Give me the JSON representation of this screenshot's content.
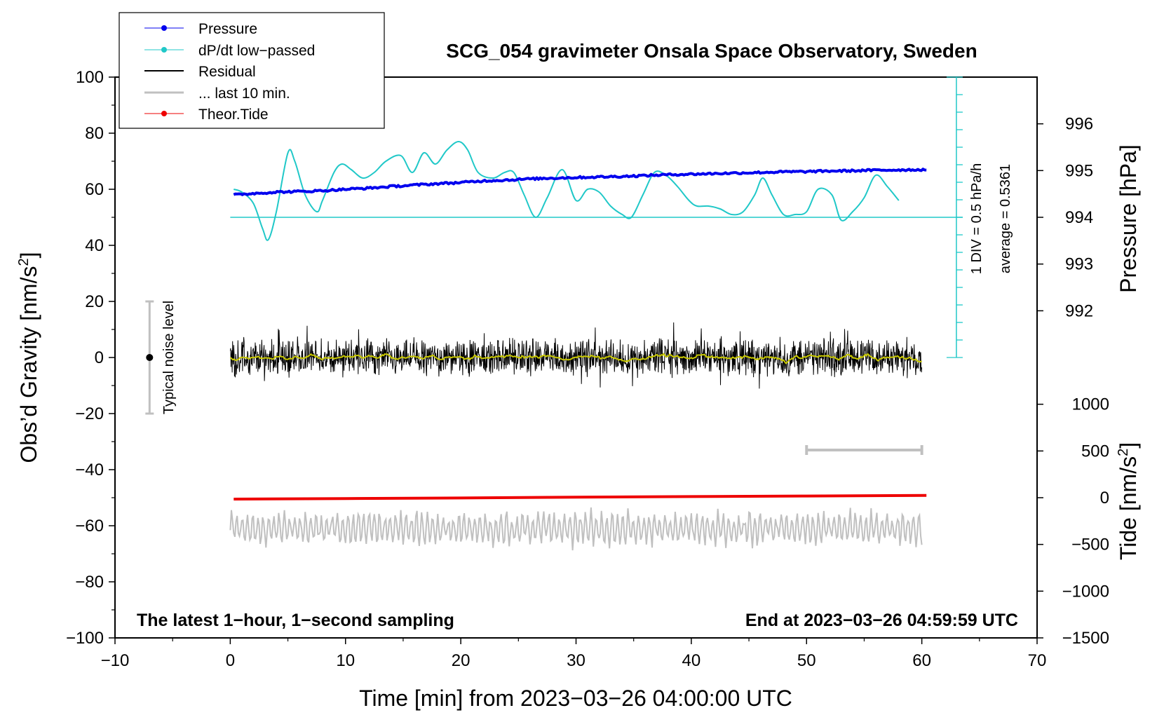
{
  "chart_data": {
    "type": "line",
    "title": "SCG_054 gravimeter Onsala Space Observatory, Sweden",
    "xlabel": "Time [min] from 2023−03−26 04:00:00 UTC",
    "ylabel_left": "Obs’d Gravity [nm/s",
    "ylabel_left_sup": "2",
    "ylabel_left_end": "]",
    "ylabel_right_pressure": "Pressure [hPa]",
    "ylabel_right_tide": "Tide [nm/s",
    "ylabel_right_tide_sup": "2",
    "ylabel_right_tide_end": "]",
    "xlim": [
      -10,
      70
    ],
    "ylim_left": [
      -100,
      100
    ],
    "x_ticks": [
      -10,
      0,
      10,
      20,
      30,
      40,
      50,
      60,
      70
    ],
    "x_tick_labels": [
      "−10",
      "0",
      "10",
      "20",
      "30",
      "40",
      "50",
      "60",
      "70"
    ],
    "y_left_ticks": [
      100,
      80,
      60,
      40,
      20,
      0,
      -20,
      -40,
      -60,
      -80,
      -100
    ],
    "y_left_tick_labels": [
      "100",
      "80",
      "60",
      "40",
      "20",
      "0",
      "−20",
      "−40",
      "−60",
      "−80",
      "−100"
    ],
    "pressure_axis": {
      "ticks": [
        996,
        995,
        994,
        993,
        992
      ],
      "tick_labels": [
        "996",
        "995",
        "994",
        "993",
        "992"
      ],
      "gravity_equiv_at_994": 50,
      "gravity_units_per_hPa": 16.67
    },
    "tide_axis": {
      "ticks": [
        1000,
        500,
        0,
        -500,
        -1000,
        -1500
      ],
      "tick_labels": [
        "1000",
        "500",
        "0",
        "−500",
        "−1000",
        "−1500"
      ],
      "gravity_equiv_at_0": -50,
      "gravity_units_per_unit": 0.03333
    },
    "dpdt_scale": {
      "label_div": "1 DIV = 0.5 hPa/h",
      "label_avg": "average = 0.5361",
      "x": 63,
      "y_range": [
        0,
        100
      ],
      "baseline_y": 50
    },
    "noise_level": {
      "label": "Typical noise level",
      "x": -7,
      "center": 0,
      "range": [
        -20,
        20
      ]
    },
    "last10_bar": {
      "x_range": [
        50,
        60
      ],
      "y": -33
    },
    "note_left": "The latest 1−hour, 1−second sampling",
    "note_right": "End at 2023−03−26 04:59:59 UTC",
    "legend": [
      {
        "label": "Pressure",
        "color": "#0000ee",
        "marker": true
      },
      {
        "label": "dP/dt low−passed",
        "color": "#20c8c8",
        "marker": true
      },
      {
        "label": "Residual",
        "color": "#000000",
        "marker": false
      },
      {
        "label": "... last 10 min.",
        "color": "#c0c0c0",
        "marker": false
      },
      {
        "label": "Theor.Tide",
        "color": "#ee0000",
        "marker": true
      }
    ],
    "series": [
      {
        "name": "Pressure",
        "color": "#0000ee",
        "x": [
          0.3,
          2,
          4,
          6,
          8,
          10,
          12,
          14,
          16,
          18,
          20,
          22,
          24,
          26,
          28,
          30,
          32,
          34,
          36,
          38,
          40,
          42,
          44,
          46,
          48,
          50,
          52,
          54,
          56,
          58,
          60.4
        ],
        "y": [
          58,
          58.5,
          59,
          59.2,
          59.5,
          60,
          60.4,
          61,
          61.5,
          62,
          62.4,
          63,
          63.3,
          63.7,
          64,
          64.2,
          64.4,
          64.6,
          64.9,
          65.2,
          65.4,
          65.6,
          65.8,
          66,
          66.2,
          66.3,
          66.5,
          66.6,
          66.8,
          66.9,
          67
        ]
      },
      {
        "name": "dP/dt low−passed",
        "color": "#20c8c8",
        "x": [
          0.3,
          1.0,
          2.0,
          2.8,
          3.3,
          4.0,
          5.0,
          5.6,
          6.5,
          7.5,
          8.0,
          9.0,
          9.7,
          10.5,
          11.5,
          12.5,
          13.5,
          14.8,
          15.8,
          16.8,
          17.8,
          18.8,
          19.8,
          20.6,
          21.5,
          22.8,
          23.8,
          24.6,
          25.5,
          26.5,
          27.5,
          28.8,
          30.0,
          31.0,
          32.0,
          33.0,
          34.0,
          34.8,
          35.8,
          36.8,
          37.8,
          38.8,
          39.8,
          40.5,
          41.5,
          42.5,
          43.5,
          44.5,
          45.5,
          46.2,
          47.0,
          48.0,
          49.0,
          50.0,
          51.0,
          52.2,
          53.0,
          54.0,
          55.0,
          56.0,
          57.0,
          58.0
        ],
        "y": [
          60,
          59,
          55,
          46,
          42,
          52,
          73,
          70,
          58,
          52,
          56,
          66,
          69,
          67,
          64,
          66,
          70,
          72,
          66,
          73,
          69,
          74,
          77,
          74,
          66,
          64,
          66,
          66,
          58,
          50,
          57,
          67,
          56,
          60,
          59,
          54,
          51,
          50,
          58,
          66,
          65,
          61,
          56,
          54,
          54,
          53,
          51,
          52,
          58,
          64,
          58,
          51,
          51,
          52,
          60,
          58,
          49,
          52,
          57,
          65,
          61,
          56
        ]
      },
      {
        "name": "Residual",
        "color": "#000000",
        "x_range": [
          0,
          60
        ],
        "approx_range": [
          -12,
          13
        ],
        "smoothed_color": "#c8c800"
      },
      {
        "name": "... last 10 min.",
        "color": "#c0c0c0",
        "x_range": [
          0,
          60
        ],
        "baseline": -61,
        "approx_range": [
          -69,
          -51
        ]
      },
      {
        "name": "Theor.Tide",
        "color": "#ee0000",
        "x": [
          0.3,
          10,
          20,
          30,
          40,
          50,
          60.4
        ],
        "y": [
          -50.5,
          -50.3,
          -50.1,
          -49.8,
          -49.6,
          -49.4,
          -49.2
        ]
      }
    ]
  }
}
